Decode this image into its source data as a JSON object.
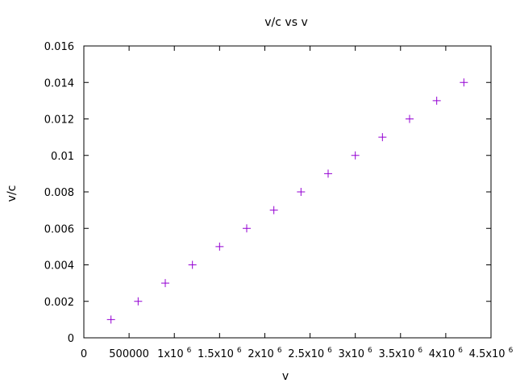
{
  "chart_data": {
    "type": "scatter",
    "title": "v/c vs v",
    "xlabel": "v",
    "ylabel": "v/c",
    "xlim": [
      0,
      4500000
    ],
    "ylim": [
      0,
      0.016
    ],
    "grid": false,
    "marker": "plus",
    "marker_color": "#9400d3",
    "x_ticks": [
      {
        "value": 0,
        "mantissa": "0",
        "exponent": ""
      },
      {
        "value": 500000,
        "mantissa": "500000",
        "exponent": ""
      },
      {
        "value": 1000000,
        "mantissa": "1x10",
        "exponent": "6"
      },
      {
        "value": 1500000,
        "mantissa": "1.5x10",
        "exponent": "6"
      },
      {
        "value": 2000000,
        "mantissa": "2x10",
        "exponent": "6"
      },
      {
        "value": 2500000,
        "mantissa": "2.5x10",
        "exponent": "6"
      },
      {
        "value": 3000000,
        "mantissa": "3x10",
        "exponent": "6"
      },
      {
        "value": 3500000,
        "mantissa": "3.5x10",
        "exponent": "6"
      },
      {
        "value": 4000000,
        "mantissa": "4x10",
        "exponent": "6"
      },
      {
        "value": 4500000,
        "mantissa": "4.5x10",
        "exponent": "6"
      }
    ],
    "y_ticks": [
      {
        "value": 0,
        "label": "0"
      },
      {
        "value": 0.002,
        "label": "0.002"
      },
      {
        "value": 0.004,
        "label": "0.004"
      },
      {
        "value": 0.006,
        "label": "0.006"
      },
      {
        "value": 0.008,
        "label": "0.008"
      },
      {
        "value": 0.01,
        "label": "0.01"
      },
      {
        "value": 0.012,
        "label": "0.012"
      },
      {
        "value": 0.014,
        "label": "0.014"
      },
      {
        "value": 0.016,
        "label": "0.016"
      }
    ],
    "x": [
      300000,
      600000,
      900000,
      1200000,
      1500000,
      1800000,
      2100000,
      2400000,
      2700000,
      3000000,
      3300000,
      3600000,
      3900000,
      4200000
    ],
    "y": [
      0.001,
      0.002,
      0.003,
      0.004,
      0.005,
      0.006,
      0.007,
      0.008,
      0.009,
      0.01,
      0.011,
      0.012,
      0.013,
      0.014
    ]
  }
}
